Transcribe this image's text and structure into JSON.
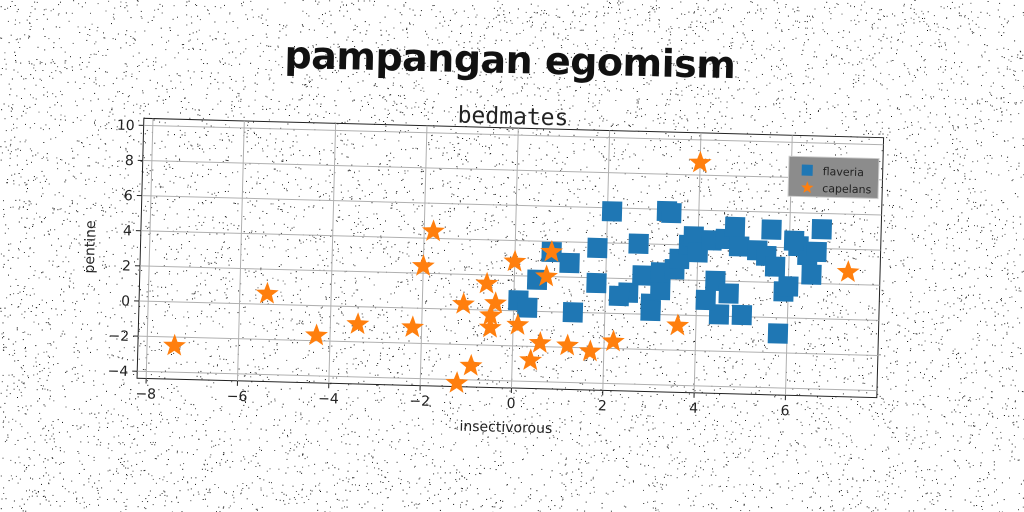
{
  "figure": {
    "suptitle": "pampangan egomism"
  },
  "chart_data": {
    "type": "scatter",
    "title": "bedmates",
    "xlabel": "insectivorous",
    "ylabel": "pentine",
    "xlim": [
      -8.2,
      8.0
    ],
    "ylim": [
      -4.4,
      10.4
    ],
    "xticks": [
      -8,
      -6,
      -4,
      -2,
      0,
      2,
      4,
      6
    ],
    "yticks": [
      -4,
      -2,
      0,
      2,
      4,
      6,
      8,
      10
    ],
    "grid": true,
    "legend_position": "top-right",
    "series": [
      {
        "name": "flaveria",
        "marker": "square",
        "color": "#1f77b4",
        "points": [
          [
            0.1,
            0.6
          ],
          [
            0.3,
            0.2
          ],
          [
            0.5,
            1.8
          ],
          [
            0.8,
            3.4
          ],
          [
            1.2,
            2.8
          ],
          [
            1.3,
            0.0
          ],
          [
            1.8,
            3.7
          ],
          [
            1.8,
            1.7
          ],
          [
            2.1,
            5.8
          ],
          [
            2.5,
            1.2
          ],
          [
            2.7,
            4.0
          ],
          [
            2.8,
            2.2
          ],
          [
            3.0,
            0.6
          ],
          [
            3.0,
            0.2
          ],
          [
            3.2,
            1.4
          ],
          [
            3.2,
            2.4
          ],
          [
            3.3,
            5.9
          ],
          [
            3.4,
            5.8
          ],
          [
            3.5,
            2.6
          ],
          [
            3.6,
            3.2
          ],
          [
            3.8,
            4.0
          ],
          [
            3.9,
            4.5
          ],
          [
            4.0,
            3.6
          ],
          [
            4.3,
            4.3
          ],
          [
            4.4,
            2.0
          ],
          [
            4.5,
            0.1
          ],
          [
            4.6,
            4.4
          ],
          [
            4.7,
            1.3
          ],
          [
            4.8,
            5.1
          ],
          [
            4.9,
            4.0
          ],
          [
            5.0,
            0.1
          ],
          [
            5.3,
            3.8
          ],
          [
            5.5,
            3.5
          ],
          [
            5.6,
            5.0
          ],
          [
            5.7,
            2.9
          ],
          [
            5.8,
            -0.9
          ],
          [
            5.9,
            1.5
          ],
          [
            6.0,
            1.8
          ],
          [
            6.2,
            4.1
          ],
          [
            6.4,
            3.6
          ],
          [
            6.5,
            2.5
          ],
          [
            6.6,
            3.8
          ],
          [
            6.7,
            5.1
          ],
          [
            2.3,
            1.0
          ],
          [
            4.2,
            0.9
          ],
          [
            6.1,
            4.4
          ]
        ]
      },
      {
        "name": "capelans",
        "marker": "star",
        "color": "#ff7f0e",
        "points": [
          [
            -7.4,
            -2.5
          ],
          [
            -5.4,
            0.6
          ],
          [
            -4.3,
            -1.7
          ],
          [
            -3.4,
            -1.0
          ],
          [
            -2.2,
            -1.1
          ],
          [
            -1.8,
            4.4
          ],
          [
            -2.0,
            2.4
          ],
          [
            -1.1,
            0.3
          ],
          [
            -1.2,
            -4.2
          ],
          [
            -0.9,
            -3.2
          ],
          [
            -0.6,
            1.5
          ],
          [
            -0.5,
            -0.3
          ],
          [
            -0.5,
            -1.0
          ],
          [
            -0.4,
            0.4
          ],
          [
            0.0,
            2.8
          ],
          [
            0.1,
            -0.8
          ],
          [
            0.4,
            -2.8
          ],
          [
            0.6,
            -1.8
          ],
          [
            0.7,
            2.0
          ],
          [
            0.8,
            3.4
          ],
          [
            1.2,
            -1.9
          ],
          [
            1.7,
            -2.2
          ],
          [
            2.2,
            -1.6
          ],
          [
            3.6,
            -0.6
          ],
          [
            4.0,
            8.7
          ],
          [
            7.3,
            2.7
          ]
        ]
      }
    ]
  }
}
